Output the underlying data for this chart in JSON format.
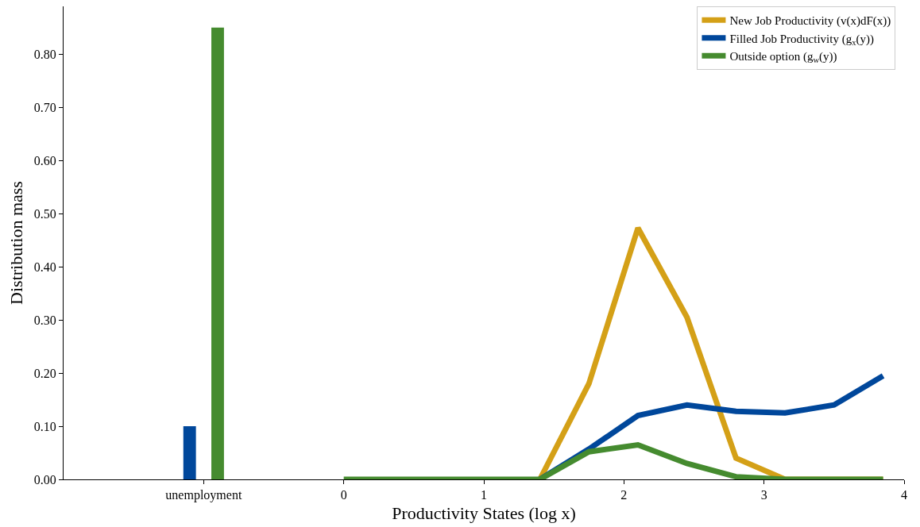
{
  "chart_data": {
    "type": "line",
    "xlabel": "Productivity States (log x)",
    "ylabel": "Distribution mass",
    "xlim": [
      -2,
      4
    ],
    "xticks": [
      {
        "value": -1,
        "label": "unemployment"
      },
      0,
      1,
      2,
      3,
      4
    ],
    "ylim": [
      0,
      0.89
    ],
    "yticks": [
      {
        "value": 0,
        "label": "0.00"
      },
      {
        "value": 0.1,
        "label": "0.10"
      },
      {
        "value": 0.2,
        "label": "0.20"
      },
      {
        "value": 0.3,
        "label": "0.30"
      },
      {
        "value": 0.4,
        "label": "0.40"
      },
      {
        "value": 0.5,
        "label": "0.50"
      },
      {
        "value": 0.6,
        "label": "0.60"
      },
      {
        "value": 0.7,
        "label": "0.70"
      },
      {
        "value": 0.8,
        "label": "0.80"
      }
    ],
    "legend": "top right",
    "series": [
      {
        "name": "New Job Productivity (v(x)dF(x))",
        "color": "#d4a017",
        "x": [
          1.4,
          1.75,
          2.1,
          2.45,
          2.8,
          3.15,
          3.5,
          3.85
        ],
        "values": [
          0,
          0.18,
          0.473,
          0.305,
          0.04,
          0,
          0,
          0
        ]
      },
      {
        "name": "Filled Job Productivity (g$_{x}$(y))",
        "color": "#00479b",
        "x": [
          1.4,
          1.75,
          2.1,
          2.45,
          2.8,
          3.15,
          3.5,
          3.85
        ],
        "values": [
          0,
          0.057,
          0.12,
          0.14,
          0.128,
          0.125,
          0.14,
          0.195
        ]
      },
      {
        "name": "Outside option (g$_{w}$(y))",
        "color": "#458b2f",
        "x": [
          0,
          0.35,
          0.7,
          1.05,
          1.4,
          1.75,
          2.1,
          2.45,
          2.8,
          3.15,
          3.5,
          3.85
        ],
        "values": [
          0,
          0,
          0,
          0,
          0,
          0.052,
          0.065,
          0.03,
          0.005,
          0,
          0,
          0
        ]
      },
      {
        "color": "#00479b",
        "type": "bar",
        "x": [
          -1.1
        ],
        "values": [
          0.1
        ]
      },
      {
        "color": "#458b2f",
        "type": "bar",
        "x": [
          -0.9
        ],
        "values": [
          0.85
        ]
      }
    ]
  }
}
